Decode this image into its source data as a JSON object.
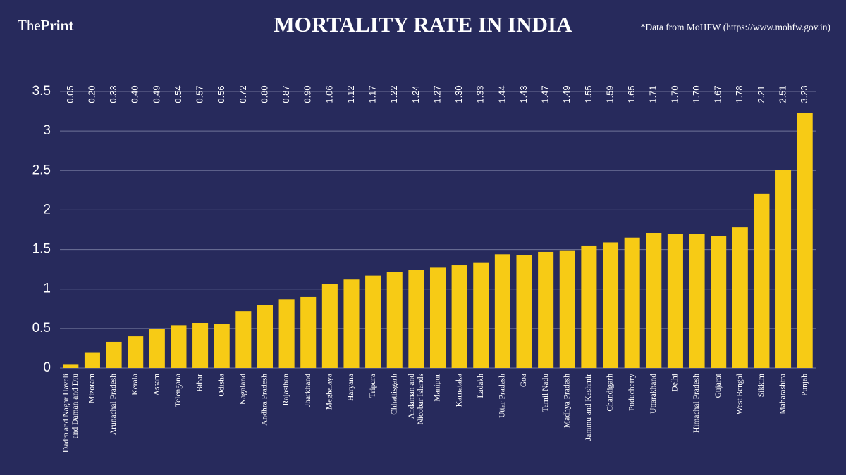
{
  "header": {
    "logo_light": "The",
    "logo_bold": "Print",
    "source": "*Data from MoHFW (https://www.mohfw.gov.in)"
  },
  "chart_data": {
    "type": "bar",
    "title": "MORTALITY RATE IN INDIA",
    "categories": [
      "Dadra and Nagar Haveli and Daman and Diu",
      "Mizoram",
      "Arunachal Pradesh",
      "Kerala",
      "Assam",
      "Telengana",
      "Bihar",
      "Odisha",
      "Nagaland",
      "Andhra Pradesh",
      "Rajasthan",
      "Jharkhand",
      "Meghalaya",
      "Haryana",
      "Tripura",
      "Chhattisgarh",
      "Andaman and Nicobar Islands",
      "Manipur",
      "Karnataka",
      "Ladakh",
      "Uttar Pradesh",
      "Goa",
      "Tamil Nadu",
      "Madhya Pradesh",
      "Jammu and Kashmir",
      "Chandigarh",
      "Puducherry",
      "Uttarakhand",
      "Delhi",
      "Himachal Pradesh",
      "Gujarat",
      "West Bengal",
      "Sikkim",
      "Maharashtra",
      "Punjab"
    ],
    "values": [
      0.05,
      0.2,
      0.33,
      0.4,
      0.49,
      0.54,
      0.57,
      0.56,
      0.72,
      0.8,
      0.87,
      0.9,
      1.06,
      1.12,
      1.17,
      1.22,
      1.24,
      1.27,
      1.3,
      1.33,
      1.44,
      1.43,
      1.47,
      1.49,
      1.55,
      1.59,
      1.65,
      1.71,
      1.7,
      1.7,
      1.67,
      1.78,
      2.21,
      2.51,
      3.23
    ],
    "value_labels": [
      "0.05",
      "0.20",
      "0.33",
      "0.40",
      "0.49",
      "0.54",
      "0.57",
      "0.56",
      "0.72",
      "0.80",
      "0.87",
      "0.90",
      "1.06",
      "1.12",
      "1.17",
      "1.22",
      "1.24",
      "1.27",
      "1.30",
      "1.33",
      "1.44",
      "1.43",
      "1.47",
      "1.49",
      "1.55",
      "1.59",
      "1.65",
      "1.71",
      "1.70",
      "1.70",
      "1.67",
      "1.78",
      "2.21",
      "2.51",
      "3.23"
    ],
    "color": "#f7cb15",
    "ylim": [
      0,
      3.5
    ],
    "yticks": [
      0,
      0.5,
      1,
      1.5,
      2,
      2.5,
      3,
      3.5
    ],
    "grid": true
  }
}
